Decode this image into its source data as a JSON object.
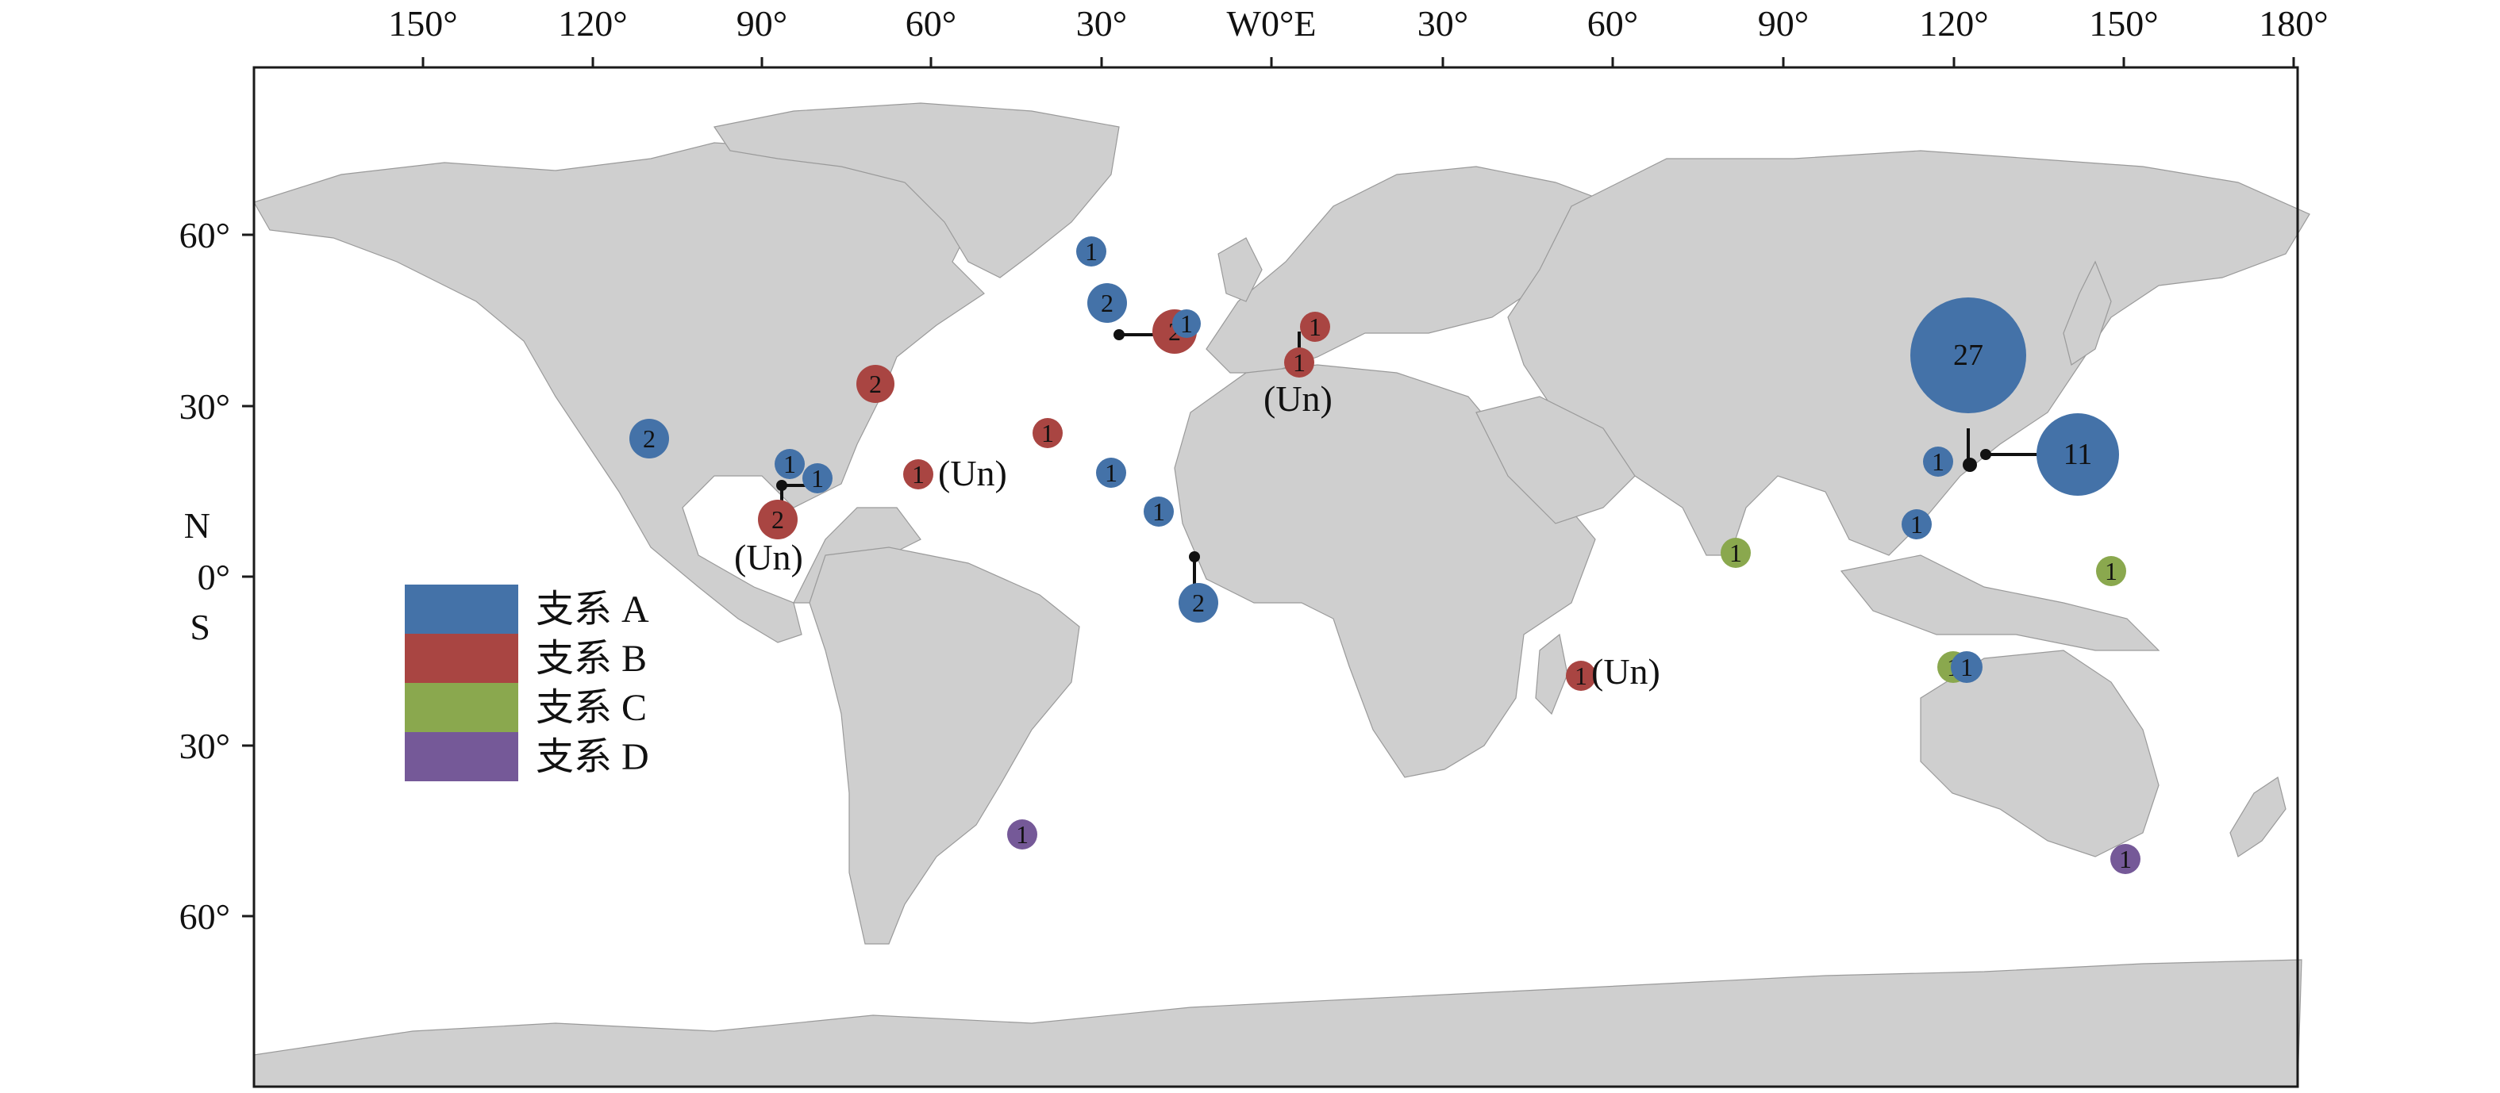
{
  "map": {
    "top_lon_labels": [
      "150°",
      "120°",
      "90°",
      "60°",
      "30°",
      "W0°E",
      "30°",
      "60°",
      "90°",
      "120°",
      "150°",
      "180°"
    ],
    "left_lat_labels": [
      "60°",
      "30°",
      "N",
      "0°",
      "S",
      "30°",
      "60°"
    ],
    "legend": [
      {
        "label": "支系 A",
        "color": "#4472a8"
      },
      {
        "label": "支系 B",
        "color": "#a94542"
      },
      {
        "label": "支系 C",
        "color": "#8aa84e"
      },
      {
        "label": "支系 D",
        "color": "#755998"
      }
    ],
    "callout_text": "(Un)",
    "markers": [
      {
        "clade": "A",
        "count": "1"
      },
      {
        "clade": "A",
        "count": "2"
      },
      {
        "clade": "B",
        "count": "2"
      },
      {
        "clade": "A",
        "count": "1"
      },
      {
        "clade": "B",
        "count": "1"
      },
      {
        "clade": "B",
        "count": "1"
      },
      {
        "clade": "B",
        "count": "2"
      },
      {
        "clade": "A",
        "count": "2"
      },
      {
        "clade": "A",
        "count": "1"
      },
      {
        "clade": "A",
        "count": "1"
      },
      {
        "clade": "B",
        "count": "2"
      },
      {
        "clade": "B",
        "count": "1"
      },
      {
        "clade": "B",
        "count": "1"
      },
      {
        "clade": "A",
        "count": "1"
      },
      {
        "clade": "A",
        "count": "1"
      },
      {
        "clade": "A",
        "count": "2"
      },
      {
        "clade": "D",
        "count": "1"
      },
      {
        "clade": "B",
        "count": "1"
      },
      {
        "clade": "C",
        "count": "1"
      },
      {
        "clade": "A",
        "count": "27"
      },
      {
        "clade": "A",
        "count": "11"
      },
      {
        "clade": "A",
        "count": "1"
      },
      {
        "clade": "A",
        "count": "1"
      },
      {
        "clade": "C",
        "count": "1"
      },
      {
        "clade": "C",
        "count": "1"
      },
      {
        "clade": "A",
        "count": "1"
      },
      {
        "clade": "D",
        "count": "1"
      }
    ]
  }
}
